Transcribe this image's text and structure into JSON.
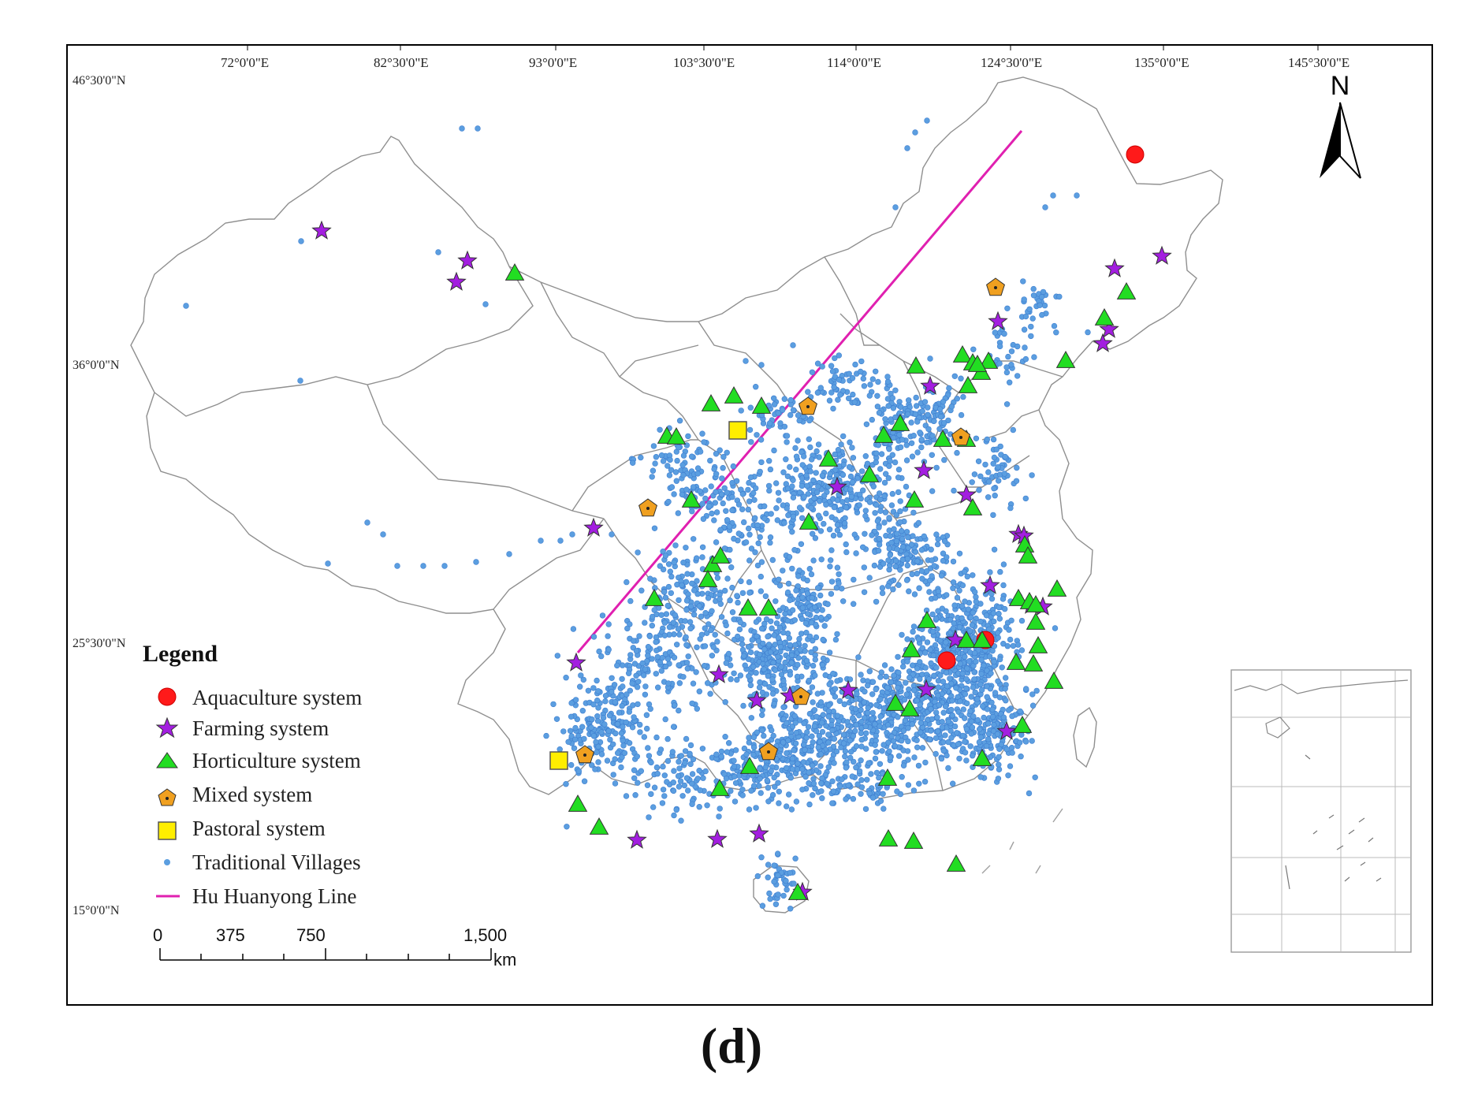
{
  "caption": "(d)",
  "longitude_labels": [
    "72°0'0\"E",
    "82°30'0\"E",
    "93°0'0\"E",
    "103°30'0\"E",
    "114°0'0\"E",
    "124°30'0\"E",
    "135°0'0\"E",
    "145°30'0\"E"
  ],
  "latitude_labels": [
    "46°30'0\"N",
    "36°0'0\"N",
    "25°30'0\"N",
    "15°0'0\"N"
  ],
  "north_arrow": {
    "label": "N",
    "icon": "north-arrow-icon"
  },
  "legend": {
    "title": "Legend",
    "items": [
      {
        "label": "Aquaculture system",
        "symbol": "circle",
        "color": "#ff1a1a"
      },
      {
        "label": "Farming system",
        "symbol": "star",
        "color": "#a31ee0"
      },
      {
        "label": "Horticulture system",
        "symbol": "triangle",
        "color": "#22dd22"
      },
      {
        "label": "Mixed system",
        "symbol": "pentagon",
        "color": "#f0a020"
      },
      {
        "label": "Pastoral system",
        "symbol": "square",
        "color": "#ffee00"
      },
      {
        "label": "Traditional Villages",
        "symbol": "dot",
        "color": "#5b9ee0"
      },
      {
        "label": "Hu Huanyong Line",
        "symbol": "line",
        "color": "#e020b0"
      }
    ]
  },
  "scale_bar": {
    "ticks": [
      "0",
      "375",
      "750",
      "1,500"
    ],
    "unit": "km"
  },
  "colors": {
    "boundary": "#9a9a9a",
    "village_fill": "#5b9ee0",
    "village_core": "#1c3f88"
  }
}
